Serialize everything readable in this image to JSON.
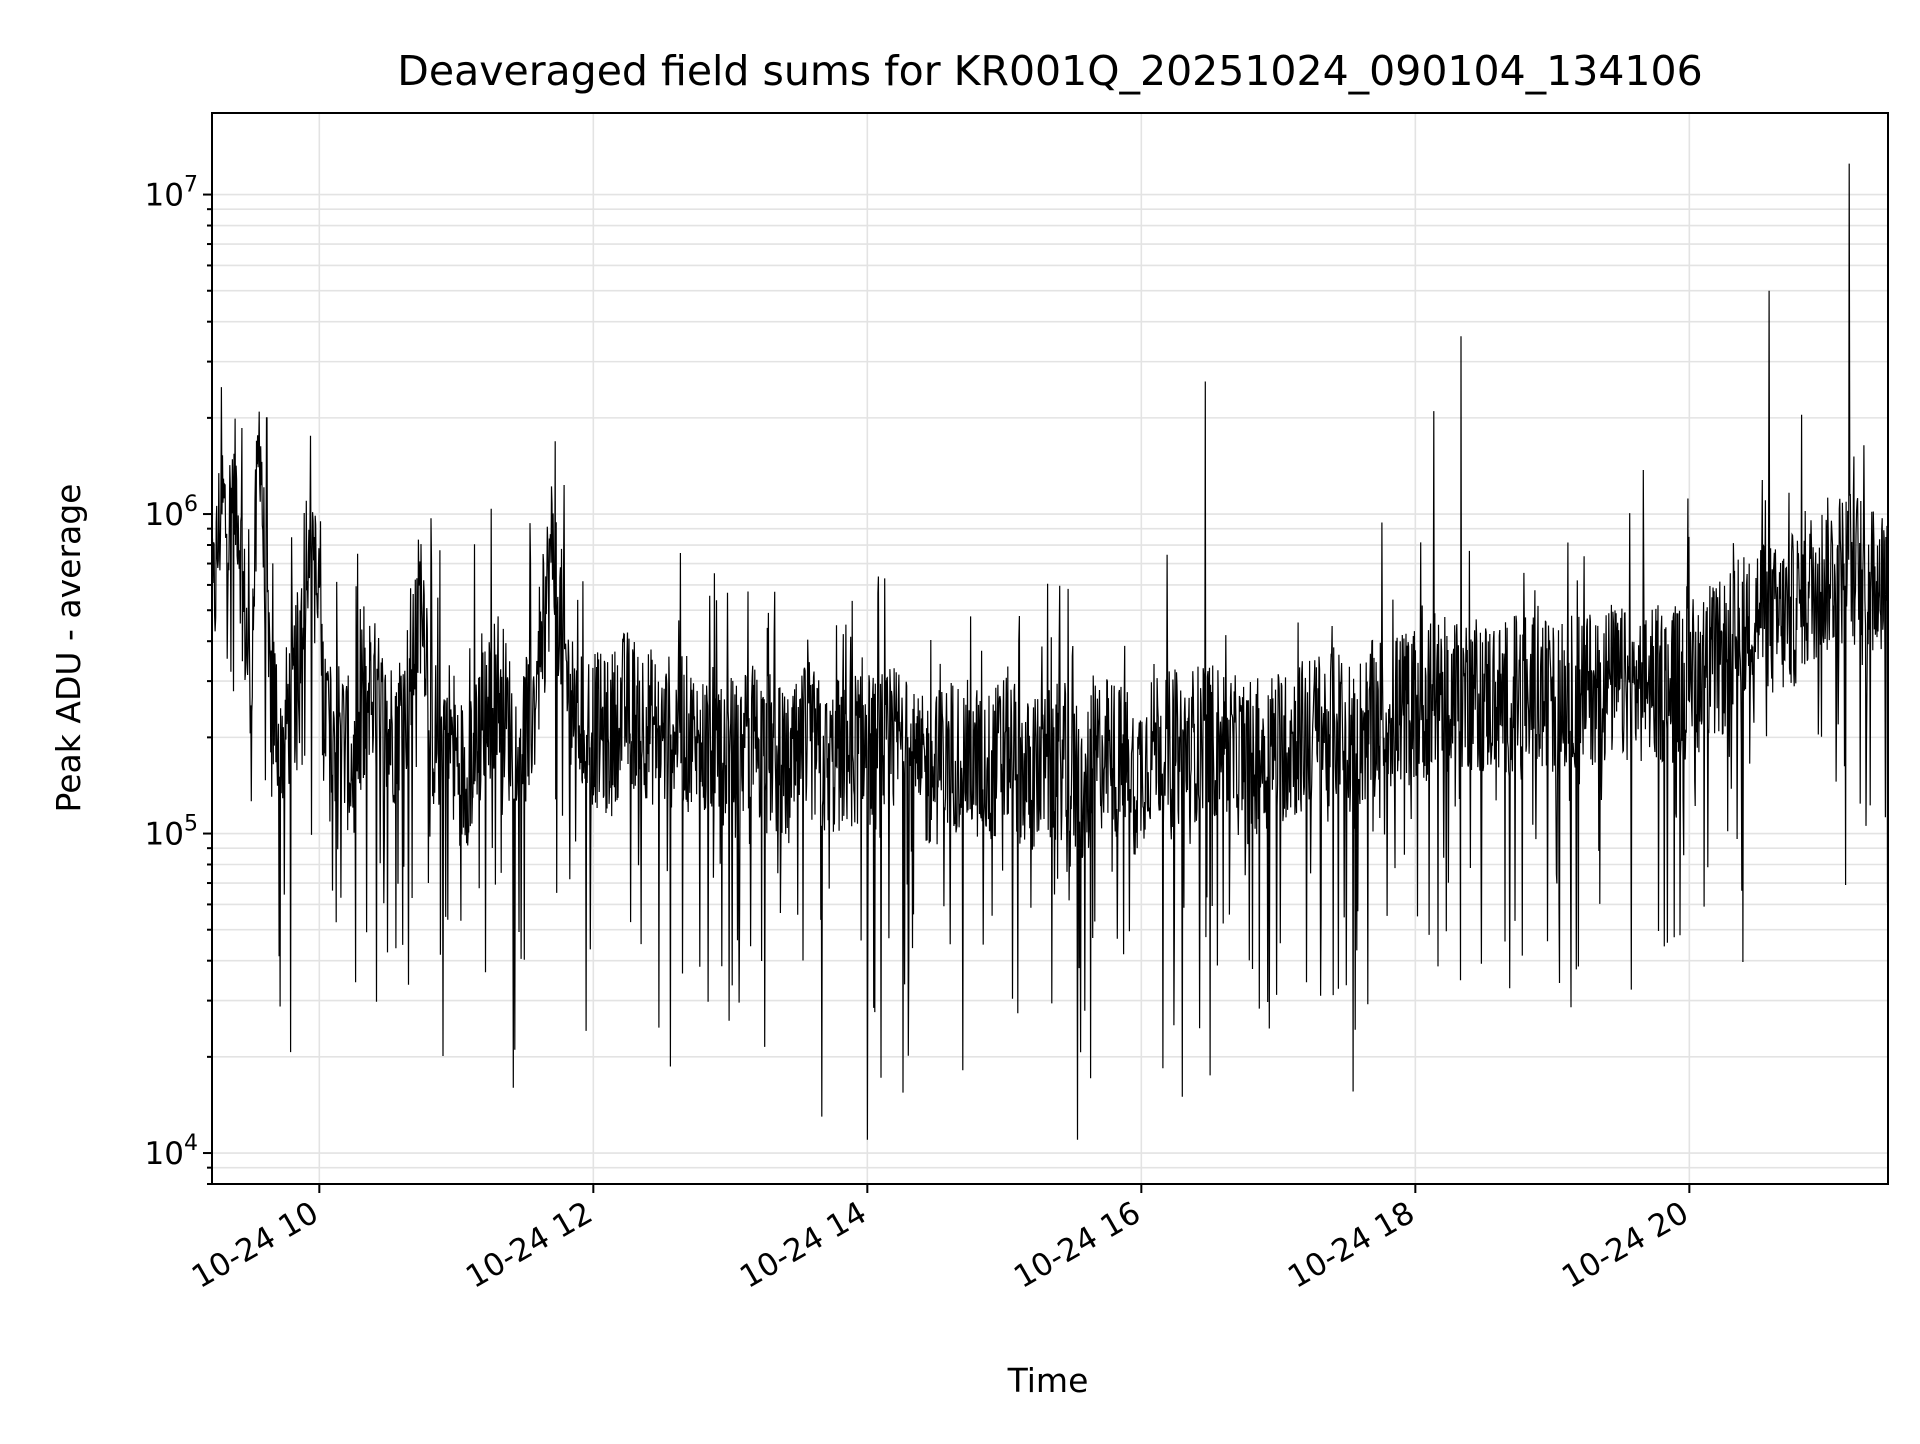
{
  "chart_data": {
    "type": "line",
    "title": "Deaveraged field sums for KR001Q_20251024_090104_134106",
    "xlabel": "Time",
    "ylabel": "Peak ADU - average",
    "yscale": "log",
    "xlim": [
      "2025-10-24T09:13",
      "2025-10-24T21:27"
    ],
    "ylim": [
      8000,
      18000000
    ],
    "x_ticks": [
      {
        "value": "2025-10-24T10:00",
        "label": "10-24 10"
      },
      {
        "value": "2025-10-24T12:00",
        "label": "10-24 12"
      },
      {
        "value": "2025-10-24T14:00",
        "label": "10-24 14"
      },
      {
        "value": "2025-10-24T16:00",
        "label": "10-24 16"
      },
      {
        "value": "2025-10-24T18:00",
        "label": "10-24 18"
      },
      {
        "value": "2025-10-24T20:00",
        "label": "10-24 20"
      }
    ],
    "y_ticks": [
      {
        "value": 10000,
        "base": "10",
        "exp": "4"
      },
      {
        "value": 100000,
        "base": "10",
        "exp": "5"
      },
      {
        "value": 1000000,
        "base": "10",
        "exp": "6"
      },
      {
        "value": 10000000,
        "base": "10",
        "exp": "7"
      }
    ],
    "grid": true,
    "line_color": "#000000",
    "series": [
      {
        "x": [
          "2025-10-24T09:13",
          "2025-10-24T09:17",
          "2025-10-24T09:20",
          "2025-10-24T09:24",
          "2025-10-24T09:27",
          "2025-10-24T09:30",
          "2025-10-24T09:34",
          "2025-10-24T09:37",
          "2025-10-24T09:40",
          "2025-10-24T09:44",
          "2025-10-24T09:50",
          "2025-10-24T09:56",
          "2025-10-24T10:02",
          "2025-10-24T10:10",
          "2025-10-24T10:16",
          "2025-10-24T10:22",
          "2025-10-24T10:30",
          "2025-10-24T10:38",
          "2025-10-24T10:45",
          "2025-10-24T10:50",
          "2025-10-24T10:56",
          "2025-10-24T11:03",
          "2025-10-24T11:10",
          "2025-10-24T11:18",
          "2025-10-24T11:26",
          "2025-10-24T11:34",
          "2025-10-24T11:42",
          "2025-10-24T11:50",
          "2025-10-24T11:58",
          "2025-10-24T12:06",
          "2025-10-24T12:14",
          "2025-10-24T12:22",
          "2025-10-24T12:30",
          "2025-10-24T12:38",
          "2025-10-24T12:46",
          "2025-10-24T12:54",
          "2025-10-24T13:02",
          "2025-10-24T13:10",
          "2025-10-24T13:18",
          "2025-10-24T13:26",
          "2025-10-24T13:34",
          "2025-10-24T13:42",
          "2025-10-24T13:50",
          "2025-10-24T13:58",
          "2025-10-24T14:06",
          "2025-10-24T14:14",
          "2025-10-24T14:22",
          "2025-10-24T14:30",
          "2025-10-24T14:38",
          "2025-10-24T14:46",
          "2025-10-24T14:54",
          "2025-10-24T15:02",
          "2025-10-24T15:10",
          "2025-10-24T15:18",
          "2025-10-24T15:26",
          "2025-10-24T15:34",
          "2025-10-24T15:42",
          "2025-10-24T15:50",
          "2025-10-24T15:58",
          "2025-10-24T16:06",
          "2025-10-24T16:14",
          "2025-10-24T16:22",
          "2025-10-24T16:30",
          "2025-10-24T16:38",
          "2025-10-24T16:46",
          "2025-10-24T16:54",
          "2025-10-24T17:02",
          "2025-10-24T17:10",
          "2025-10-24T17:18",
          "2025-10-24T17:26",
          "2025-10-24T17:34",
          "2025-10-24T17:42",
          "2025-10-24T17:50",
          "2025-10-24T17:58",
          "2025-10-24T18:06",
          "2025-10-24T18:14",
          "2025-10-24T18:22",
          "2025-10-24T18:30",
          "2025-10-24T18:38",
          "2025-10-24T18:46",
          "2025-10-24T18:54",
          "2025-10-24T19:02",
          "2025-10-24T19:10",
          "2025-10-24T19:18",
          "2025-10-24T19:26",
          "2025-10-24T19:34",
          "2025-10-24T19:42",
          "2025-10-24T19:50",
          "2025-10-24T19:58",
          "2025-10-24T20:06",
          "2025-10-24T20:14",
          "2025-10-24T20:22",
          "2025-10-24T20:30",
          "2025-10-24T20:38",
          "2025-10-24T20:46",
          "2025-10-24T20:54",
          "2025-10-24T21:02",
          "2025-10-24T21:10",
          "2025-10-24T21:18",
          "2025-10-24T21:27"
        ],
        "y": [
          450000,
          1100000,
          900000,
          1200000,
          500000,
          300000,
          2000000,
          350000,
          250000,
          200000,
          300000,
          1100000,
          250000,
          200000,
          150000,
          300000,
          200000,
          250000,
          600000,
          200000,
          220000,
          150000,
          200000,
          300000,
          180000,
          250000,
          800000,
          250000,
          220000,
          200000,
          250000,
          230000,
          200000,
          220000,
          180000,
          200000,
          170000,
          200000,
          180000,
          150000,
          200000,
          160000,
          180000,
          190000,
          170000,
          200000,
          150000,
          160000,
          180000,
          170000,
          160000,
          190000,
          150000,
          160000,
          170000,
          130000,
          180000,
          170000,
          150000,
          200000,
          180000,
          190000,
          200000,
          180000,
          170000,
          180000,
          190000,
          200000,
          210000,
          220000,
          200000,
          230000,
          240000,
          250000,
          260000,
          270000,
          280000,
          270000,
          260000,
          280000,
          270000,
          260000,
          280000,
          290000,
          300000,
          280000,
          300000,
          290000,
          300000,
          320000,
          350000,
          400000,
          500000,
          450000,
          500000,
          600000,
          650000,
          700000,
          650000,
          600000
        ],
        "spikes": [
          {
            "x": "2025-10-24T09:37",
            "y": 2000000
          },
          {
            "x": "2025-10-24T16:28",
            "y": 2600000
          },
          {
            "x": "2025-10-24T18:08",
            "y": 2100000
          },
          {
            "x": "2025-10-24T18:20",
            "y": 3600000
          },
          {
            "x": "2025-10-24T20:35",
            "y": 5000000
          },
          {
            "x": "2025-10-24T21:10",
            "y": 12500000
          }
        ],
        "dips": [
          {
            "x": "2025-10-24T13:40",
            "y": 13000
          },
          {
            "x": "2025-10-24T14:00",
            "y": 11000
          },
          {
            "x": "2025-10-24T15:32",
            "y": 11000
          },
          {
            "x": "2025-10-24T11:25",
            "y": 16000
          },
          {
            "x": "2025-10-24T16:18",
            "y": 15000
          }
        ]
      }
    ]
  }
}
